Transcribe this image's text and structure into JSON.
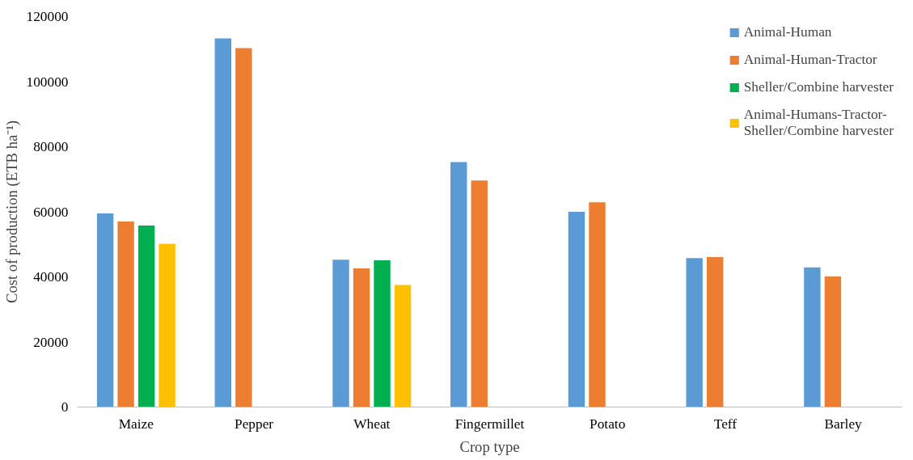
{
  "chart_data": {
    "type": "bar",
    "xlabel": "Crop type",
    "ylabel": "Cost of production (ETB ha⁻¹)",
    "categories": [
      "Maize",
      "Pepper",
      "Wheat",
      "Fingermillet",
      "Potato",
      "Teff",
      "Barley"
    ],
    "series": [
      {
        "name": "Animal-Human",
        "color": "#5b9bd5",
        "values": [
          59500,
          113300,
          45300,
          75300,
          60000,
          45800,
          42900
        ]
      },
      {
        "name": "Animal-Human-Tractor",
        "color": "#ed7d31",
        "values": [
          57000,
          110300,
          42600,
          69600,
          62900,
          46100,
          40100
        ]
      },
      {
        "name": "Sheller/Combine harvester",
        "color": "#00b050",
        "values": [
          55800,
          null,
          45100,
          null,
          null,
          null,
          null
        ]
      },
      {
        "name": "Animal-Humans-Tractor-Sheller/Combine harvester",
        "color": "#ffc000",
        "values": [
          50200,
          null,
          37500,
          null,
          null,
          null,
          null
        ]
      }
    ],
    "ylim": [
      0,
      120000
    ],
    "yticks": [
      0,
      20000,
      40000,
      60000,
      80000,
      100000,
      120000
    ],
    "grid": false,
    "legend": "top right"
  }
}
